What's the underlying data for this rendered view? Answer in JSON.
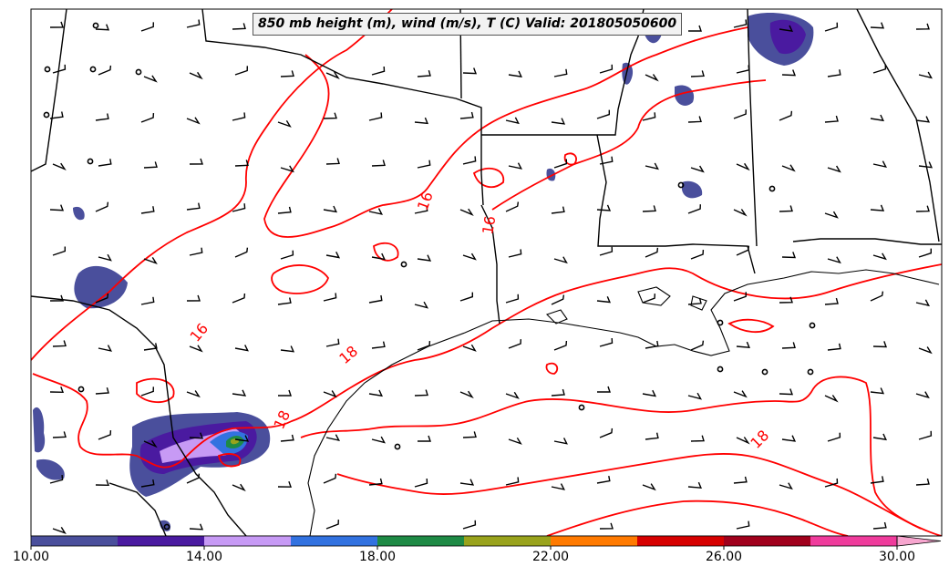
{
  "title": "850 mb height (m), wind (m/s), T (C) Valid: 201805050600",
  "contour_labels": [
    {
      "text": "16"
    },
    {
      "text": "16"
    },
    {
      "text": "16"
    },
    {
      "text": "18"
    },
    {
      "text": "18"
    },
    {
      "text": "18"
    }
  ],
  "colorbar": {
    "ticks": [
      "10.00",
      "14.00",
      "18.00",
      "22.00",
      "26.00",
      "30.00"
    ],
    "min": 10,
    "max": 30,
    "colors": [
      "#4a4f9c",
      "#4a1aa0",
      "#c79af5",
      "#3272e0",
      "#1e8a45",
      "#99a31c",
      "#ff7a00",
      "#d60000",
      "#a0001c",
      "#ef3c9c"
    ],
    "extend_color": "#f7a6cf"
  }
}
